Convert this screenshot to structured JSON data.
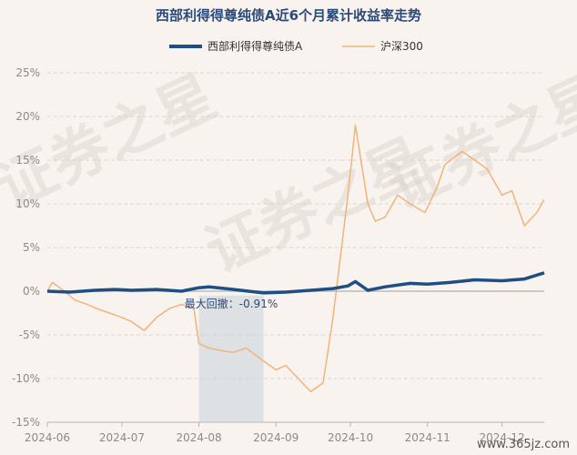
{
  "chart_data": {
    "type": "line",
    "title": "西部利得得尊纯债A近6个月累计收益率走势",
    "x_ticks": [
      "2024-06",
      "2024-07",
      "2024-08",
      "2024-09",
      "2024-10",
      "2024-11",
      "2024-12"
    ],
    "y_ticks": [
      "25%",
      "20%",
      "15%",
      "10%",
      "5%",
      "0%",
      "-5%",
      "-10%",
      "-15%"
    ],
    "ylim": [
      -15,
      25
    ],
    "xlim": [
      "2024-06-01",
      "2024-12-18"
    ],
    "grid": true,
    "legend_position": "top-center",
    "annotation": {
      "text": "最大回撤：-0.91%",
      "x_start": "2024-08-01",
      "x_end": "2024-08-27"
    },
    "series": [
      {
        "name": "西部利得得尊纯债A",
        "color": "#1f4e84",
        "x": [
          "2024-06-01",
          "2024-06-10",
          "2024-06-20",
          "2024-06-28",
          "2024-07-05",
          "2024-07-15",
          "2024-07-25",
          "2024-08-01",
          "2024-08-05",
          "2024-08-15",
          "2024-08-27",
          "2024-09-05",
          "2024-09-15",
          "2024-09-24",
          "2024-09-30",
          "2024-10-03",
          "2024-10-08",
          "2024-10-15",
          "2024-10-25",
          "2024-11-01",
          "2024-11-10",
          "2024-11-20",
          "2024-12-01",
          "2024-12-10",
          "2024-12-18"
        ],
        "values": [
          0.0,
          -0.1,
          0.1,
          0.2,
          0.1,
          0.2,
          0.0,
          0.4,
          0.5,
          0.2,
          -0.2,
          -0.1,
          0.1,
          0.3,
          0.6,
          1.1,
          0.1,
          0.5,
          0.9,
          0.8,
          1.0,
          1.3,
          1.2,
          1.4,
          2.1
        ]
      },
      {
        "name": "沪深300",
        "color": "#f0b47a",
        "x": [
          "2024-06-01",
          "2024-06-03",
          "2024-06-07",
          "2024-06-12",
          "2024-06-17",
          "2024-06-21",
          "2024-06-26",
          "2024-07-01",
          "2024-07-05",
          "2024-07-10",
          "2024-07-15",
          "2024-07-20",
          "2024-07-25",
          "2024-07-30",
          "2024-08-01",
          "2024-08-05",
          "2024-08-10",
          "2024-08-15",
          "2024-08-20",
          "2024-08-27",
          "2024-09-01",
          "2024-09-05",
          "2024-09-10",
          "2024-09-15",
          "2024-09-20",
          "2024-09-24",
          "2024-09-27",
          "2024-09-30",
          "2024-10-03",
          "2024-10-08",
          "2024-10-11",
          "2024-10-15",
          "2024-10-20",
          "2024-10-25",
          "2024-10-31",
          "2024-11-05",
          "2024-11-08",
          "2024-11-15",
          "2024-11-20",
          "2024-11-25",
          "2024-12-01",
          "2024-12-05",
          "2024-12-10",
          "2024-12-15",
          "2024-12-18"
        ],
        "values": [
          0.0,
          1.0,
          0.2,
          -1.0,
          -1.5,
          -2.0,
          -2.5,
          -3.0,
          -3.5,
          -4.5,
          -3.0,
          -2.0,
          -1.5,
          -2.0,
          -6.0,
          -6.5,
          -6.8,
          -7.0,
          -6.5,
          -8.0,
          -9.0,
          -8.5,
          -10.0,
          -11.5,
          -10.5,
          -3.0,
          4.0,
          11.0,
          19.0,
          10.0,
          8.0,
          8.5,
          11.0,
          10.0,
          9.0,
          12.0,
          14.5,
          16.0,
          15.0,
          14.0,
          11.0,
          11.5,
          7.5,
          9.0,
          10.5
        ]
      }
    ]
  },
  "footer": {
    "watermark": "证券之星",
    "site": "www.365jz.com"
  }
}
